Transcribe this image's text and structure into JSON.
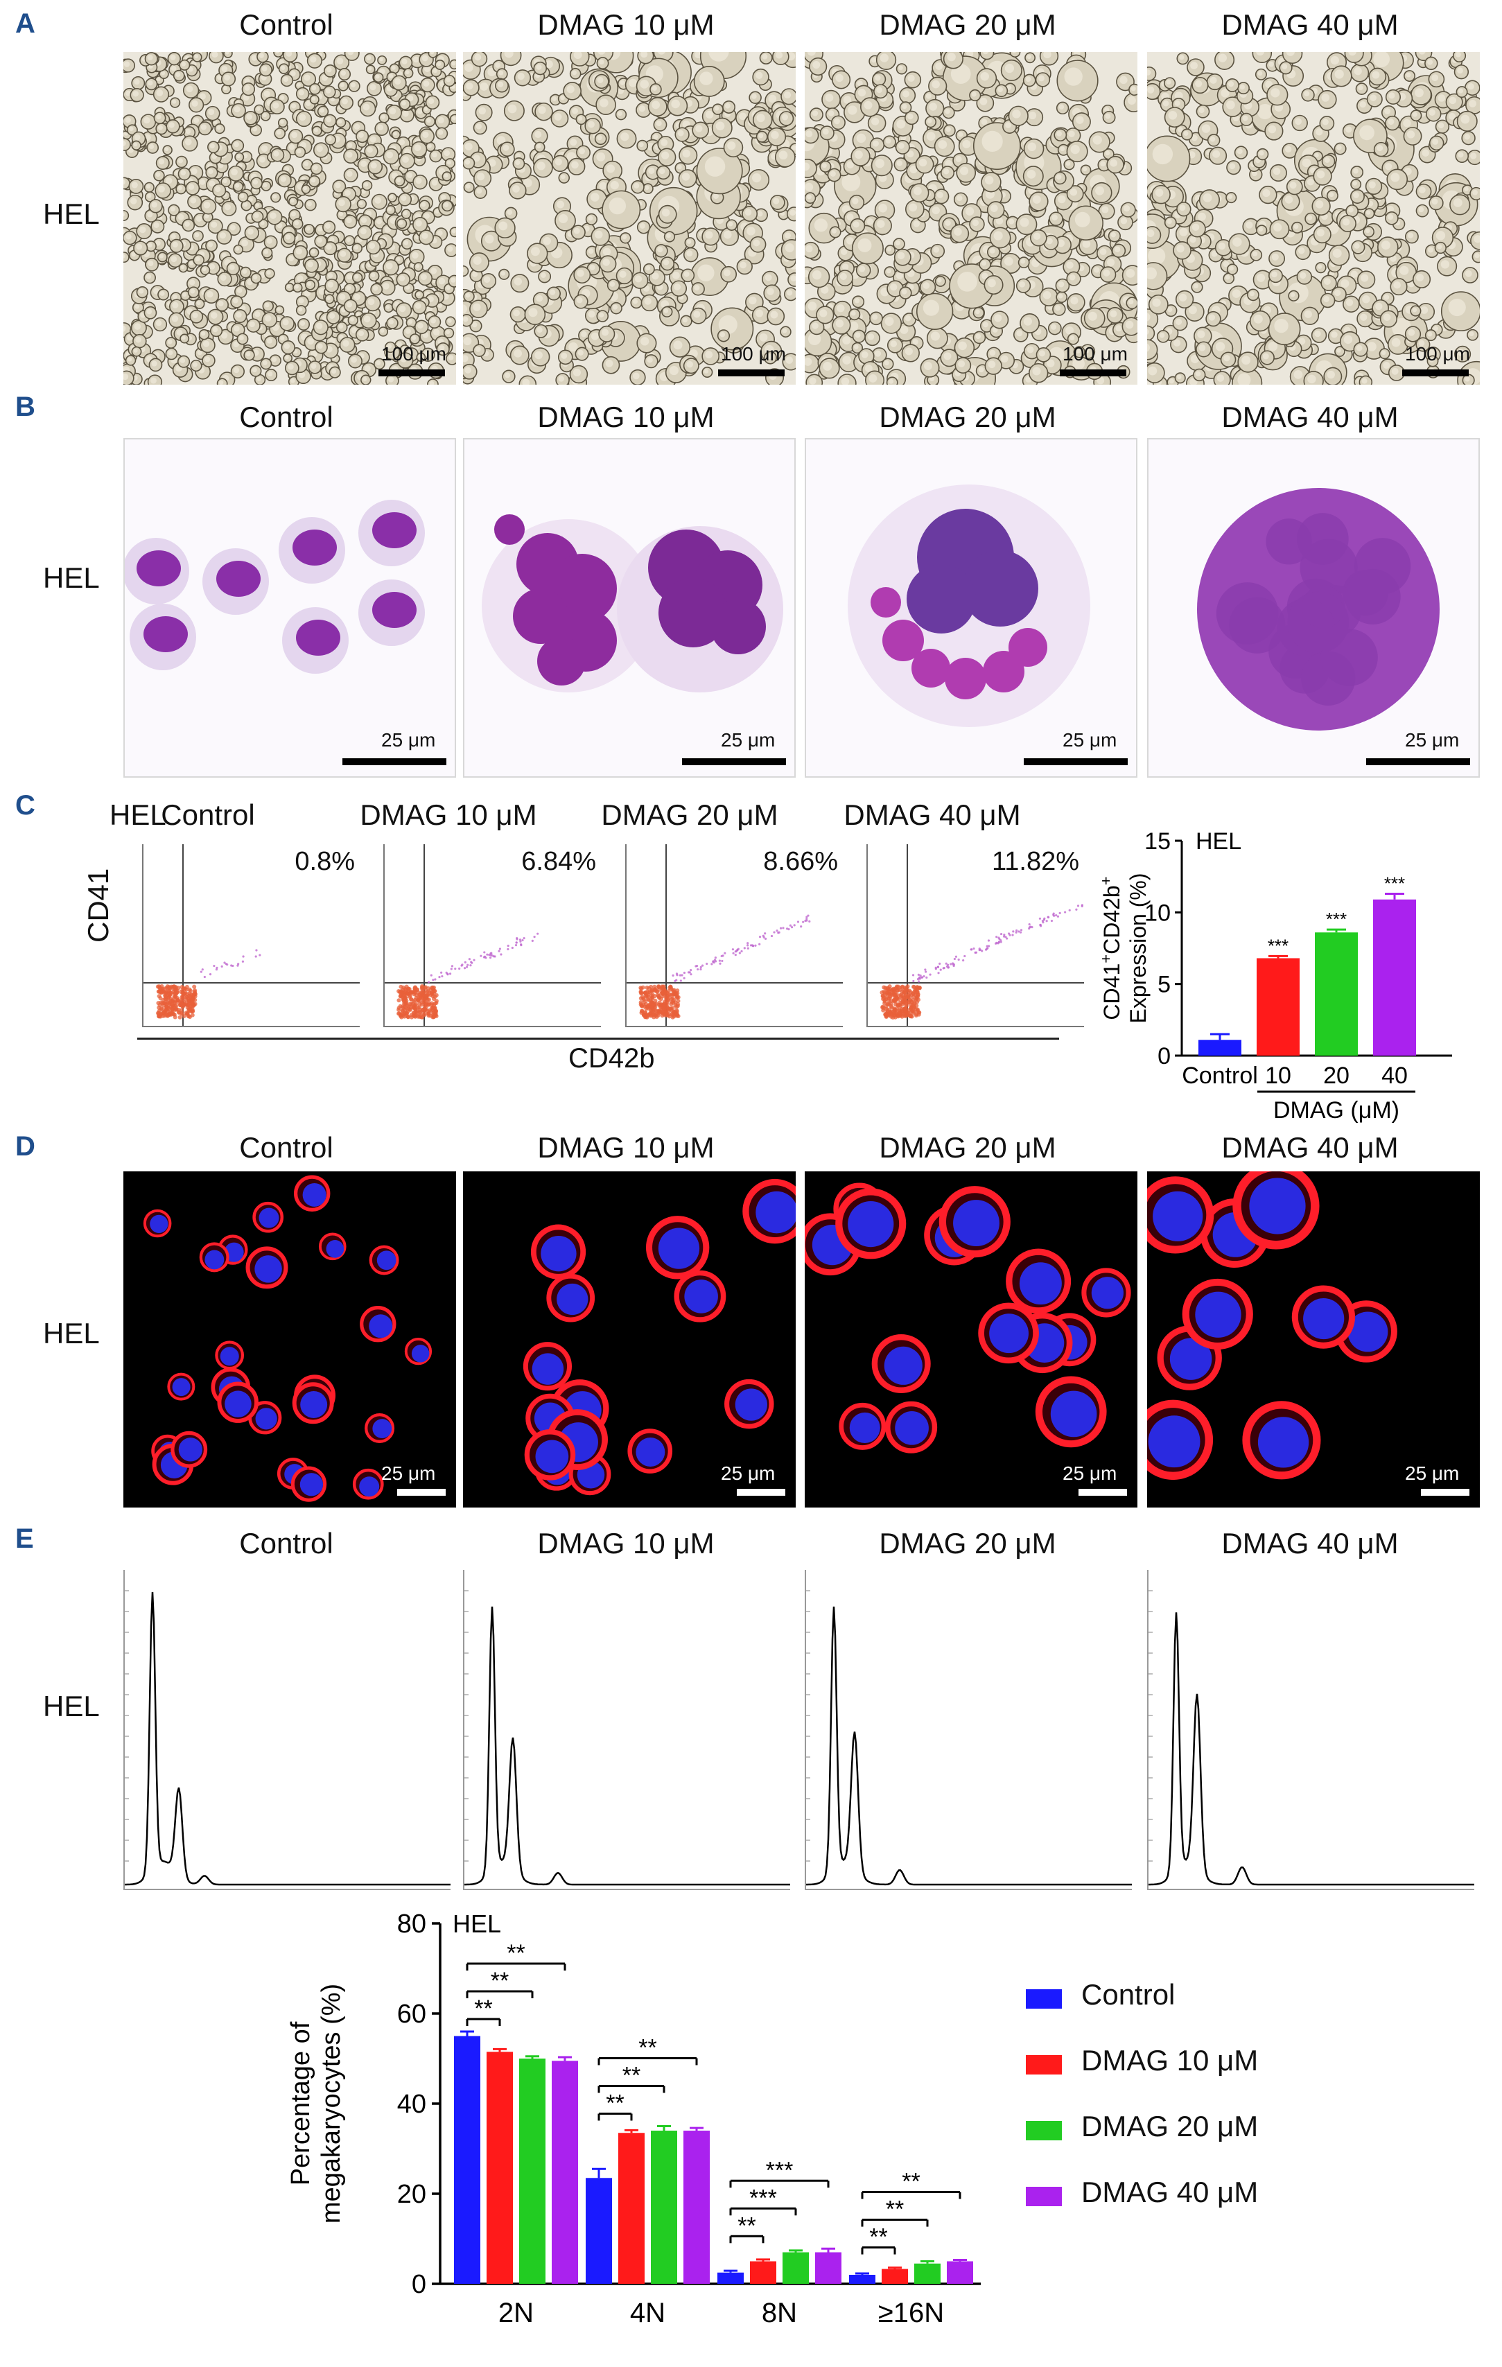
{
  "panels": {
    "A": {
      "label": "A",
      "row_label": "HEL",
      "conditions": [
        "Control",
        "DMAG 10 μM",
        "DMAG 20 μM",
        "DMAG 40 μM"
      ],
      "scale_bar": "100 μm"
    },
    "B": {
      "label": "B",
      "row_label": "HEL",
      "conditions": [
        "Control",
        "DMAG 10 μM",
        "DMAG 20 μM",
        "DMAG 40 μM"
      ],
      "scale_bar": "25 μm"
    },
    "C": {
      "label": "C",
      "row_label": "HEL",
      "conditions": [
        "Control",
        "DMAG 10 μM",
        "DMAG 20 μM",
        "DMAG 40 μM"
      ],
      "percents": [
        "0.8%",
        "6.84%",
        "8.66%",
        "11.82%"
      ],
      "y_axis": "CD41",
      "x_axis": "CD42b"
    },
    "D": {
      "label": "D",
      "row_label": "HEL",
      "conditions": [
        "Control",
        "DMAG 10 μM",
        "DMAG 20 μM",
        "DMAG 40 μM"
      ],
      "scale_bar": "25 μm"
    },
    "E": {
      "label": "E",
      "row_label": "HEL",
      "conditions": [
        "Control",
        "DMAG 10 μM",
        "DMAG 20 μM",
        "DMAG 40 μM"
      ]
    }
  },
  "colors": {
    "control": "#1a1aff",
    "dmag10": "#ff1a1a",
    "dmag20": "#22cc22",
    "dmag40": "#aa22ee",
    "panel_label": "#1f4e8c"
  },
  "chart_data": [
    {
      "type": "bar",
      "title": "HEL",
      "ylabel": "CD41+CD42b+ Expression (%)",
      "ylabel_main": "CD41",
      "ylabel_sup1": "+",
      "ylabel_mid": "CD42b",
      "ylabel_sup2": "+",
      "ylabel_line2": "Expression (%)",
      "categories": [
        "Control",
        "10",
        "20",
        "40"
      ],
      "group_label": "DMAG (μM)",
      "values": [
        1.1,
        6.8,
        8.6,
        10.9
      ],
      "errors": [
        0.4,
        0.15,
        0.2,
        0.4
      ],
      "significance": [
        "",
        "***",
        "***",
        "***"
      ],
      "ylim": [
        0,
        15
      ],
      "yticks": [
        0,
        5,
        10,
        15
      ]
    },
    {
      "type": "bar",
      "title": "HEL",
      "ylabel_line1": "Percentage of",
      "ylabel_line2": "megakaryocytes (%)",
      "categories": [
        "2N",
        "4N",
        "8N",
        "≥16N"
      ],
      "series": [
        {
          "name": "Control",
          "values": [
            55,
            23.5,
            2.5,
            2
          ],
          "errors": [
            1,
            2,
            0.4,
            0.3
          ]
        },
        {
          "name": "DMAG 10 μM",
          "values": [
            51.5,
            33.5,
            5,
            3.3
          ],
          "errors": [
            0.6,
            0.6,
            0.4,
            0.3
          ]
        },
        {
          "name": "DMAG 20 μM",
          "values": [
            50,
            34,
            7,
            4.5
          ],
          "errors": [
            0.5,
            1,
            0.4,
            0.5
          ]
        },
        {
          "name": "DMAG 40 μM",
          "values": [
            49.5,
            34,
            7,
            5
          ],
          "errors": [
            0.8,
            0.6,
            0.8,
            0.3
          ]
        }
      ],
      "significance": [
        [
          "**",
          "**",
          "**"
        ],
        [
          "**",
          "**",
          "**"
        ],
        [
          "**",
          "***",
          "***"
        ],
        [
          "**",
          "**",
          "**"
        ]
      ],
      "ylim": [
        0,
        80
      ],
      "yticks": [
        0,
        20,
        40,
        60,
        80
      ],
      "legend_position": "right"
    }
  ]
}
